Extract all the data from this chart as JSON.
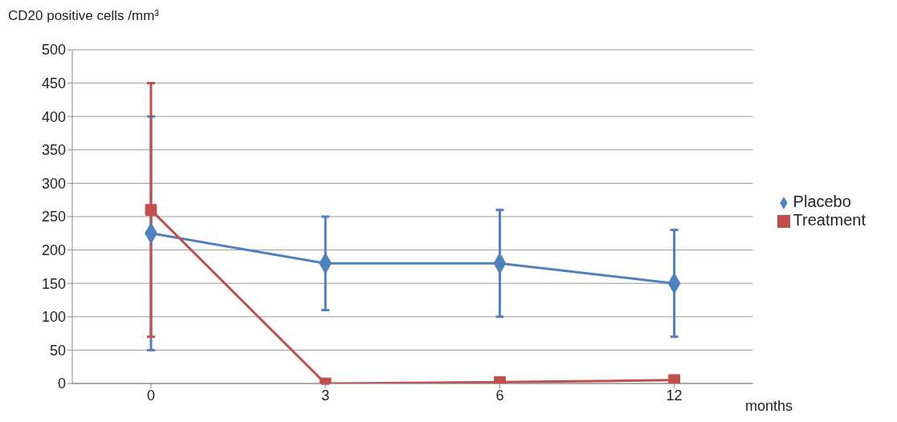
{
  "chart_data": {
    "type": "line",
    "ylabel": "CD20 positive cells /mm³",
    "xlabel": "months",
    "categories": [
      "0",
      "3",
      "6",
      "12"
    ],
    "series": [
      {
        "name": "Placebo",
        "color": "#4f81bd",
        "marker": "diamond",
        "values": [
          225,
          180,
          180,
          150
        ],
        "errors": [
          [
            50,
            400
          ],
          [
            110,
            250
          ],
          [
            100,
            260
          ],
          [
            70,
            230
          ]
        ]
      },
      {
        "name": "Treatment",
        "color": "#c0504d",
        "marker": "square",
        "values": [
          260,
          0,
          2,
          5
        ],
        "errors": [
          [
            70,
            450
          ],
          null,
          null,
          null
        ]
      }
    ],
    "ylim": [
      0,
      500
    ],
    "yticks": [
      0,
      50,
      100,
      150,
      200,
      250,
      300,
      350,
      400,
      450,
      500
    ],
    "grid": "y",
    "legend": "right",
    "line_style": "solid"
  }
}
